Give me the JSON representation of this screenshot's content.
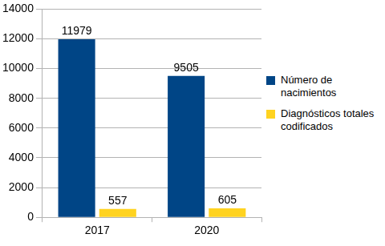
{
  "chart_data": {
    "type": "bar",
    "categories": [
      "2017",
      "2020"
    ],
    "series": [
      {
        "name": "Número de nacimientos",
        "color": "#004586",
        "values": [
          11979,
          9505
        ]
      },
      {
        "name": "Diagnósticos totales codificados",
        "color": "#ffd320",
        "values": [
          557,
          605
        ]
      }
    ],
    "ylim": [
      0,
      14000
    ],
    "yticks": [
      0,
      2000,
      4000,
      6000,
      8000,
      10000,
      12000,
      14000
    ],
    "grid": true,
    "legend": "right",
    "data_labels": true
  }
}
